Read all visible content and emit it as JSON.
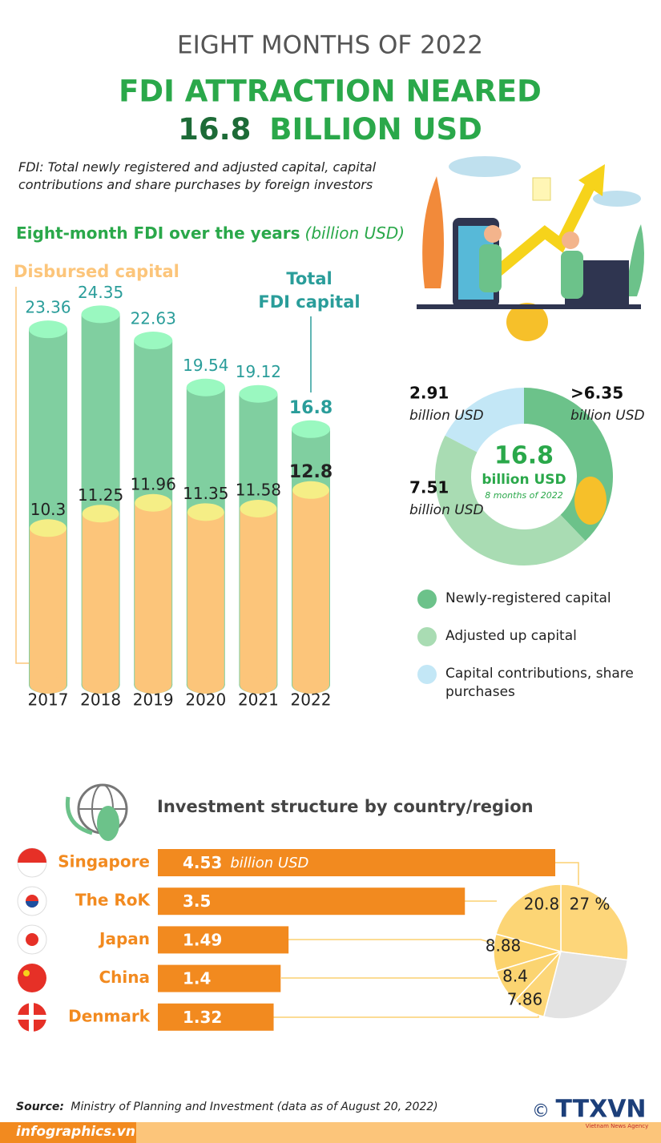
{
  "header": {
    "kicker": "EIGHT MONTHS OF 2022",
    "title_line1": "FDI ATTRACTION NEARED",
    "title_value": "16.8",
    "title_rest": "BILLION USD"
  },
  "note": "FDI: Total newly registered and adjusted capital, capital contributions and share purchases by foreign investors",
  "chart_data": [
    {
      "type": "cylinder-bar",
      "title": "Eight-month FDI over the years",
      "subtitle": "(billion USD)",
      "categories": [
        "2017",
        "2018",
        "2019",
        "2020",
        "2021",
        "2022"
      ],
      "series": [
        {
          "name": "Total FDI capital",
          "color": "#80cfa0",
          "values": [
            23.36,
            24.35,
            22.63,
            19.54,
            19.12,
            16.8
          ]
        },
        {
          "name": "Disbursed capital",
          "color": "#fcc57a",
          "values": [
            10.3,
            11.25,
            11.96,
            11.35,
            11.58,
            12.8
          ]
        }
      ],
      "ylim": [
        0,
        25
      ]
    },
    {
      "type": "donut",
      "categories": [
        "Newly-registered capital",
        "Adjusted up capital",
        "Capital contributions, share purchases"
      ],
      "values": [
        6.35,
        7.51,
        2.91
      ],
      "value_labels": [
        ">6.35",
        "7.51",
        "2.91"
      ],
      "colors": [
        "#6cc28a",
        "#a9dcb3",
        "#c3e7f6"
      ],
      "unit": "billion USD",
      "center_value": 16.8,
      "center_unit": "billion USD",
      "center_note": "8 months of 2022"
    },
    {
      "type": "hbar",
      "title": "Investment structure by country/region",
      "categories": [
        "Singapore",
        "The RoK",
        "Japan",
        "China",
        "Denmark"
      ],
      "values": [
        4.53,
        3.5,
        1.49,
        1.4,
        1.32
      ],
      "unit": "billion USD",
      "color": "#f28a1f",
      "xlim": [
        0,
        5
      ]
    },
    {
      "type": "pie",
      "values": [
        27,
        20.8,
        8.88,
        8.4,
        7.86,
        27.06
      ],
      "value_labels": [
        "27 %",
        "20.8",
        "8.88",
        "8.4",
        "7.86",
        null
      ],
      "colors": [
        "#fdd67a",
        "#fcd575",
        "#fcd36d",
        "#fbd471",
        "#fcd678",
        "#e3e3e3"
      ]
    }
  ],
  "source_label": "Source:",
  "source": "Ministry of Planning and Investment (data as of August 20, 2022)",
  "footer": "infographics.vn",
  "copyright": "©",
  "logo": "TTXVN",
  "logo_sub": "Vietnam News Agency"
}
